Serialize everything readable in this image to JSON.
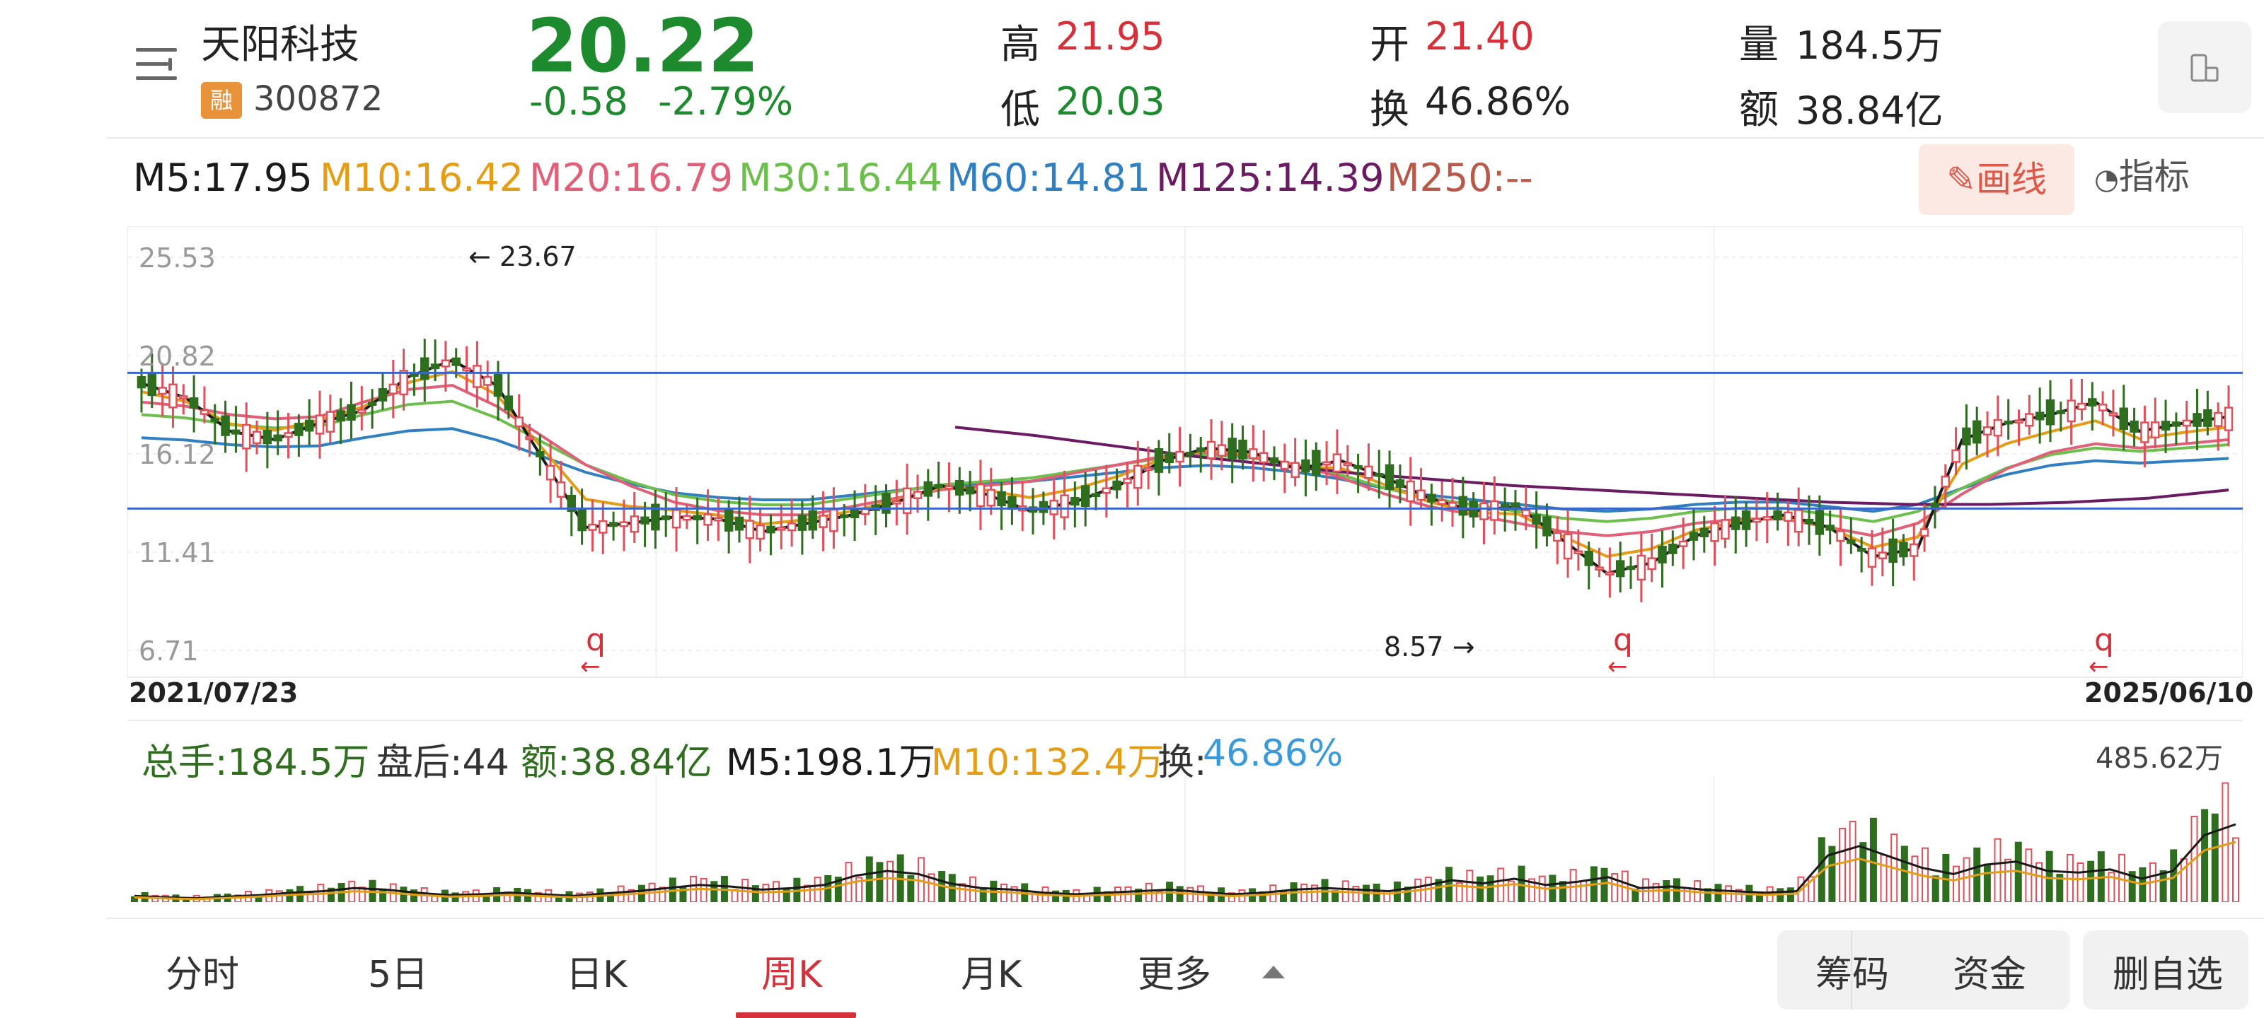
{
  "header": {
    "name": "天阳科技",
    "badge": "融",
    "code": "300872",
    "price": "20.22",
    "change": "-0.58",
    "change_pct": "-2.79%",
    "high_label": "高",
    "high": "21.95",
    "low_label": "低",
    "low": "20.03",
    "open_label": "开",
    "open": "21.40",
    "turnover_label": "换",
    "turnover": "46.86%",
    "volume_label": "量",
    "volume": "184.5万",
    "amount_label": "额",
    "amount": "38.84亿"
  },
  "ma_line": [
    {
      "text": "M5:17.95",
      "color": "#1a1a1a"
    },
    {
      "text": "M10:16.42",
      "color": "#e39d17"
    },
    {
      "text": "M20:16.79",
      "color": "#e0607a"
    },
    {
      "text": "M30:16.44",
      "color": "#6cbf4c"
    },
    {
      "text": "M60:14.81",
      "color": "#2f7fc1"
    },
    {
      "text": "M125:14.39",
      "color": "#6a1b62"
    },
    {
      "text": "M250:--",
      "color": "#b85a4a"
    }
  ],
  "toolbar": {
    "draw_label": "画线",
    "indicator_label": "指标"
  },
  "chart_data": {
    "type": "candlestick",
    "y_ticks": [
      "25.53",
      "20.82",
      "16.12",
      "11.41",
      "6.71"
    ],
    "ylim": [
      6.71,
      25.53
    ],
    "start_date": "2021/07/23",
    "end_date": "2025/06/10",
    "annotation_high": "23.67",
    "annotation_low": "8.57",
    "marker_glyph": "q",
    "horizontal_levels": [
      20.0,
      13.5
    ],
    "colors": {
      "up": "#e0505a",
      "down": "#2f6d1f",
      "m5": "#1a1a1a",
      "m10": "#e39d17",
      "m20": "#e0607a",
      "m30": "#6cbf4c",
      "m60": "#2f7fc1",
      "m125": "#6a1b62",
      "level": "#3a66c9"
    },
    "ma5_path": [
      19.5,
      18.8,
      17.2,
      16.8,
      17.6,
      18.2,
      19.8,
      20.6,
      19.4,
      16.0,
      12.6,
      12.8,
      13.1,
      13.0,
      12.4,
      12.8,
      13.2,
      13.8,
      14.6,
      14.2,
      13.4,
      13.8,
      14.6,
      15.8,
      16.4,
      16.2,
      15.4,
      15.8,
      15.0,
      14.0,
      13.4,
      13.6,
      12.0,
      10.4,
      10.9,
      12.2,
      12.8,
      13.2,
      12.6,
      11.2,
      11.6,
      16.8,
      17.6,
      18.0,
      18.6,
      17.2,
      17.6,
      17.9
    ],
    "ma20_path": [
      18.6,
      18.4,
      18.0,
      17.8,
      17.9,
      18.6,
      19.2,
      19.4,
      18.4,
      17.0,
      15.6,
      14.6,
      13.8,
      13.4,
      13.2,
      13.2,
      13.6,
      14.0,
      14.4,
      14.6,
      14.8,
      15.2,
      15.6,
      16.0,
      16.2,
      16.0,
      15.6,
      15.0,
      14.2,
      13.6,
      13.2,
      12.8,
      12.4,
      12.2,
      12.4,
      12.8,
      13.0,
      13.0,
      12.6,
      12.2,
      12.8,
      14.2,
      15.4,
      16.2,
      16.6,
      16.4,
      16.6,
      16.8
    ],
    "volume": {
      "max_label": "485.62万",
      "total_label": "总手:184.5万",
      "after_hours_label": "盘后:44",
      "amount_label": "额:38.84亿",
      "m5_label": "M5:198.1万",
      "m10_label": "M10:132.4万",
      "turnover_label": "换:",
      "turnover_value": "46.86%",
      "values": [
        8,
        6,
        5,
        7,
        9,
        12,
        14,
        18,
        16,
        12,
        9,
        10,
        12,
        10,
        8,
        11,
        14,
        18,
        22,
        20,
        16,
        18,
        22,
        34,
        40,
        36,
        24,
        18,
        16,
        12,
        10,
        12,
        14,
        16,
        13,
        10,
        12,
        16,
        18,
        16,
        14,
        20,
        28,
        24,
        30,
        22,
        26,
        32,
        18,
        20,
        16,
        14,
        12,
        14,
        60,
        72,
        58,
        44,
        36,
        48,
        52,
        40,
        38,
        42,
        30,
        40,
        86,
        100
      ]
    }
  },
  "bottom_tabs": [
    "分时",
    "5日",
    "日K",
    "周K",
    "月K",
    "更多"
  ],
  "bottom_actions": {
    "chips": "筹码",
    "funds": "资金",
    "remove": "删自选"
  }
}
